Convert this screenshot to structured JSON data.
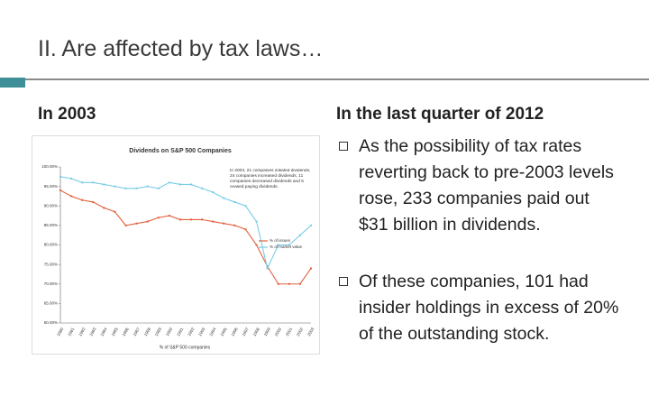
{
  "title": "II. Are affected by tax laws…",
  "left": {
    "heading": "In 2003"
  },
  "right": {
    "heading": "In the last quarter of 2012",
    "bullets": [
      "As the possibility of tax rates reverting back to pre-2003 levels rose, 233 companies paid out $31 billion in dividends.",
      "Of these companies, 101 had insider holdings in excess of 20% of the outstanding stock."
    ]
  },
  "chart_data": {
    "type": "line",
    "title": "Dividends on S&P 500 Companies",
    "xlabel": "% of S&P 500 companies",
    "annotation": "In 2003, 21 companies initiated dividends, 24 companies increased dividends, 11 companies decreased dividends and 5 ceased paying dividends.",
    "categories": [
      "1980",
      "1981",
      "1982",
      "1983",
      "1984",
      "1985",
      "1986",
      "1987",
      "1988",
      "1989",
      "1990",
      "1991",
      "1992",
      "1993",
      "1994",
      "1995",
      "1996",
      "1997",
      "1998",
      "1999",
      "2000",
      "2001",
      "2002",
      "2003"
    ],
    "series": [
      {
        "name": "% of issues",
        "color": "#e0603c",
        "values": [
          94,
          92.5,
          91.5,
          91,
          89.5,
          88.5,
          85,
          85.5,
          86,
          87,
          87.5,
          86.5,
          86.5,
          86.5,
          86,
          85.5,
          85,
          84,
          80,
          74.5,
          70,
          70,
          70,
          74
        ]
      },
      {
        "name": "% of market value",
        "color": "#78cce6",
        "values": [
          97.5,
          97,
          96,
          96,
          95.5,
          95,
          94.5,
          94.5,
          95,
          94.5,
          96,
          95.5,
          95.5,
          94.5,
          93.5,
          92,
          91,
          90,
          86,
          74,
          80,
          80,
          82.5,
          85
        ]
      }
    ],
    "ylim": [
      60,
      100
    ],
    "yticks": [
      {
        "value": 60,
        "label": "60.00%"
      },
      {
        "value": 65,
        "label": "65.00%"
      },
      {
        "value": 70,
        "label": "70.00%"
      },
      {
        "value": 75,
        "label": "75.00%"
      },
      {
        "value": 80,
        "label": "80.00%"
      },
      {
        "value": 85,
        "label": "85.00%"
      },
      {
        "value": 90,
        "label": "90.00%"
      },
      {
        "value": 95,
        "label": "95.00%"
      },
      {
        "value": 100,
        "label": "100.00%"
      }
    ],
    "legend": "right"
  }
}
